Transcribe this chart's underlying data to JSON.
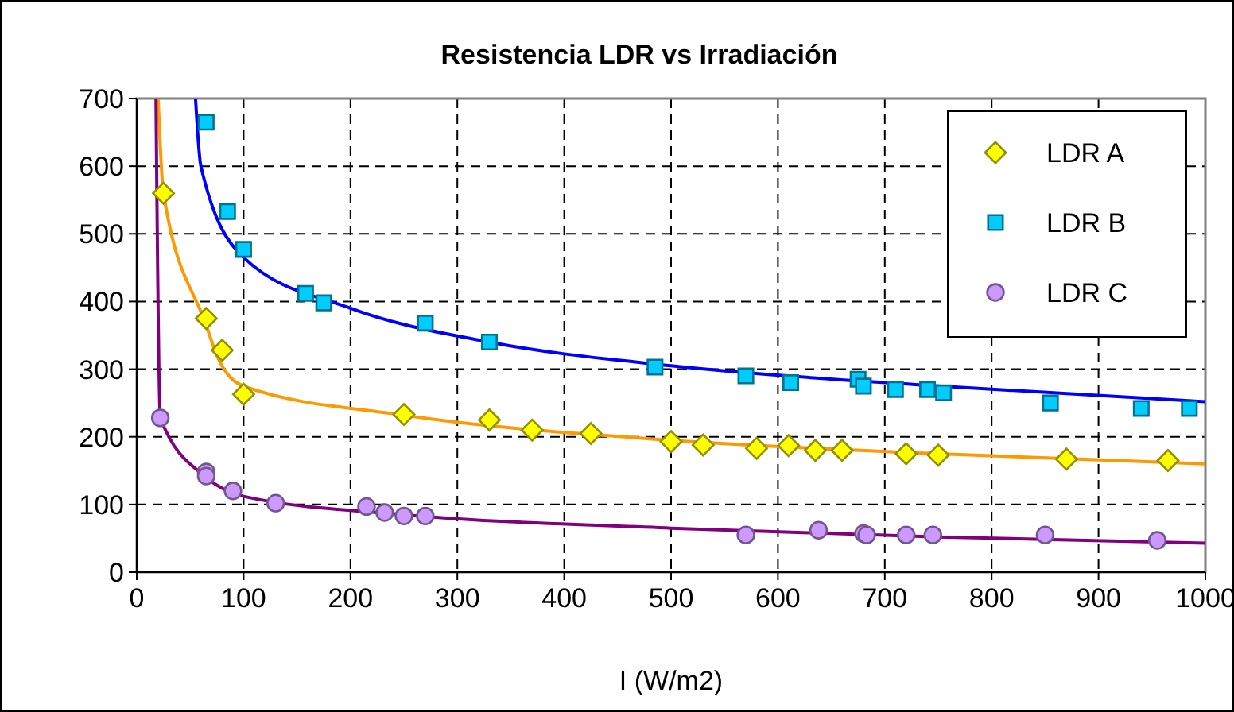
{
  "chart_data": {
    "type": "scatter",
    "title": "Resistencia LDR vs Irradiación",
    "xlabel": "I (W/m2)",
    "xlim": [
      0,
      1000
    ],
    "xticks": [
      0,
      100,
      200,
      300,
      400,
      500,
      600,
      700,
      800,
      900,
      1000
    ],
    "ylim": [
      0,
      700
    ],
    "yticks": [
      0,
      100,
      200,
      300,
      400,
      500,
      600,
      700
    ],
    "grid": true,
    "legend": "top right",
    "series": [
      {
        "name": "LDR A",
        "marker": "diamond",
        "color": "#ffff00",
        "x": [
          25,
          65,
          80,
          100,
          250,
          330,
          370,
          425,
          500,
          530,
          580,
          610,
          635,
          660,
          720,
          750,
          870,
          965
        ],
        "values": [
          560,
          375,
          328,
          263,
          233,
          225,
          210,
          205,
          193,
          188,
          183,
          187,
          180,
          180,
          175,
          173,
          167,
          165
        ]
      },
      {
        "name": "LDR B",
        "marker": "square",
        "color": "#00ccff",
        "x": [
          65,
          85,
          100,
          158,
          175,
          270,
          330,
          485,
          570,
          612,
          675,
          680,
          710,
          740,
          755,
          855,
          940,
          985
        ],
        "values": [
          665,
          533,
          477,
          412,
          398,
          368,
          340,
          303,
          290,
          280,
          285,
          275,
          270,
          270,
          265,
          250,
          242,
          242
        ]
      },
      {
        "name": "LDR C",
        "marker": "circle",
        "color": "#cc99ff",
        "x": [
          22,
          65,
          65,
          90,
          130,
          215,
          232,
          250,
          270,
          570,
          638,
          680,
          683,
          720,
          745,
          850,
          955
        ],
        "values": [
          228,
          148,
          142,
          120,
          102,
          97,
          88,
          83,
          83,
          55,
          62,
          57,
          55,
          55,
          55,
          55,
          47
        ]
      },
      {
        "type": "line",
        "color": "#ff9900",
        "x": [
          20,
          25,
          65,
          75,
          100,
          250,
          500,
          750,
          1000
        ],
        "values": [
          700,
          560,
          365,
          320,
          275,
          232,
          195,
          175,
          160
        ]
      },
      {
        "type": "line",
        "color": "#0000ff",
        "x": [
          55,
          60,
          100,
          200,
          330,
          500,
          750,
          1000
        ],
        "values": [
          700,
          600,
          465,
          390,
          340,
          305,
          275,
          252
        ]
      },
      {
        "type": "line",
        "color": "#800080",
        "x": [
          18,
          22,
          65,
          100,
          250,
          500,
          750,
          1000
        ],
        "values": [
          700,
          228,
          140,
          112,
          85,
          65,
          52,
          43
        ]
      }
    ]
  }
}
